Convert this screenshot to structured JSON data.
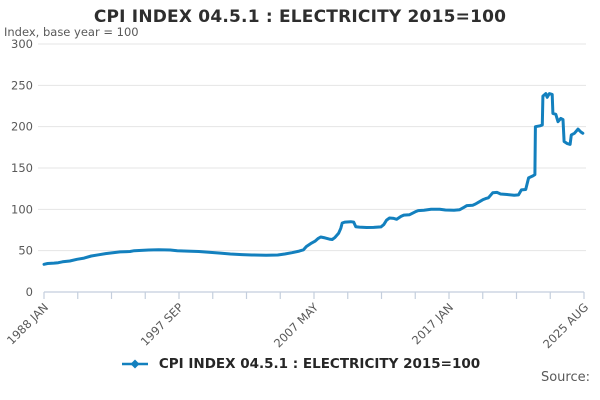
{
  "title": "CPI INDEX 04.5.1 : ELECTRICITY 2015=100",
  "subtitle": "Index, base year = 100",
  "source_label": "Source:",
  "legend": {
    "label": "CPI INDEX 04.5.1 : ELECTRICITY 2015=100"
  },
  "colors": {
    "line": "#1380be",
    "grid": "#e5e5e5",
    "axis": "#c4cedd",
    "tick_text": "#595959",
    "title_text": "#2e2e2e"
  },
  "chart_data": {
    "type": "line",
    "title": "CPI INDEX 04.5.1 : ELECTRICITY 2015=100",
    "ylabel": "Index, base year = 100",
    "xlabel": "",
    "ylim": [
      0,
      300
    ],
    "yticks": [
      0,
      50,
      100,
      150,
      200,
      250,
      300
    ],
    "x_range_years": [
      1988.0,
      2025.667
    ],
    "xtick_labels": [
      "1988 JAN",
      "1997 SEP",
      "2007 MAY",
      "2017 JAN",
      "2025 AUG"
    ],
    "minor_xtick_count": 17,
    "labeled_tick_indices": [
      0,
      4,
      8,
      12,
      16
    ],
    "grid": "horizontal",
    "legend_position": "bottom",
    "series": [
      {
        "name": "CPI INDEX 04.5.1 : ELECTRICITY 2015=100",
        "color": "#1380be",
        "points": [
          [
            1988.0,
            33.5
          ],
          [
            1988.25,
            34.5
          ],
          [
            1988.7,
            35
          ],
          [
            1989.0,
            35.5
          ],
          [
            1989.3,
            36.5
          ],
          [
            1989.8,
            37.5
          ],
          [
            1990.3,
            39.5
          ],
          [
            1990.8,
            41
          ],
          [
            1991.3,
            43.5
          ],
          [
            1991.8,
            45
          ],
          [
            1992.3,
            46.5
          ],
          [
            1992.8,
            47.5
          ],
          [
            1993.3,
            48.5
          ],
          [
            1994.0,
            49
          ],
          [
            1994.3,
            50
          ],
          [
            1995.3,
            50.8
          ],
          [
            1996.0,
            51
          ],
          [
            1996.8,
            50.8
          ],
          [
            1997.3,
            50
          ],
          [
            1998.0,
            49.5
          ],
          [
            1998.8,
            49
          ],
          [
            1999.5,
            48
          ],
          [
            2000.3,
            47
          ],
          [
            2001.0,
            46
          ],
          [
            2001.8,
            45.2
          ],
          [
            2002.5,
            44.8
          ],
          [
            2003.5,
            44.5
          ],
          [
            2004.3,
            44.8
          ],
          [
            2004.8,
            46
          ],
          [
            2005.3,
            47.5
          ],
          [
            2005.8,
            49.5
          ],
          [
            2006.1,
            51
          ],
          [
            2006.3,
            55
          ],
          [
            2006.6,
            58.5
          ],
          [
            2006.9,
            61.5
          ],
          [
            2007.1,
            64.5
          ],
          [
            2007.3,
            66.5
          ],
          [
            2007.6,
            65.5
          ],
          [
            2007.9,
            64
          ],
          [
            2008.1,
            63.5
          ],
          [
            2008.3,
            66
          ],
          [
            2008.55,
            71
          ],
          [
            2008.7,
            77
          ],
          [
            2008.8,
            83.5
          ],
          [
            2009.0,
            84.5
          ],
          [
            2009.4,
            85
          ],
          [
            2009.6,
            84.5
          ],
          [
            2009.75,
            79
          ],
          [
            2010.0,
            78.5
          ],
          [
            2010.5,
            78
          ],
          [
            2011.0,
            78.2
          ],
          [
            2011.5,
            78.8
          ],
          [
            2011.7,
            81.5
          ],
          [
            2011.9,
            87
          ],
          [
            2012.1,
            89.5
          ],
          [
            2012.4,
            89
          ],
          [
            2012.6,
            88
          ],
          [
            2012.9,
            91.5
          ],
          [
            2013.1,
            93
          ],
          [
            2013.5,
            93.5
          ],
          [
            2013.9,
            97
          ],
          [
            2014.1,
            98.5
          ],
          [
            2014.5,
            99
          ],
          [
            2015.0,
            100
          ],
          [
            2015.6,
            100
          ],
          [
            2016.0,
            99.2
          ],
          [
            2016.6,
            99
          ],
          [
            2017.0,
            99.5
          ],
          [
            2017.3,
            102.5
          ],
          [
            2017.5,
            104.5
          ],
          [
            2017.9,
            105
          ],
          [
            2018.1,
            106.5
          ],
          [
            2018.3,
            108.5
          ],
          [
            2018.6,
            111.5
          ],
          [
            2018.8,
            113
          ],
          [
            2019.0,
            114
          ],
          [
            2019.3,
            120
          ],
          [
            2019.6,
            120.5
          ],
          [
            2019.85,
            118.5
          ],
          [
            2020.3,
            118
          ],
          [
            2020.8,
            117
          ],
          [
            2021.1,
            117.5
          ],
          [
            2021.3,
            123.5
          ],
          [
            2021.6,
            124
          ],
          [
            2021.8,
            138
          ],
          [
            2022.1,
            140.5
          ],
          [
            2022.24,
            142
          ],
          [
            2022.28,
            200
          ],
          [
            2022.6,
            201
          ],
          [
            2022.76,
            202
          ],
          [
            2022.8,
            237
          ],
          [
            2023.0,
            240
          ],
          [
            2023.1,
            235.5
          ],
          [
            2023.25,
            240
          ],
          [
            2023.45,
            239
          ],
          [
            2023.5,
            216
          ],
          [
            2023.7,
            215
          ],
          [
            2023.85,
            206
          ],
          [
            2024.05,
            210
          ],
          [
            2024.2,
            208.5
          ],
          [
            2024.28,
            182
          ],
          [
            2024.5,
            179.5
          ],
          [
            2024.7,
            178.5
          ],
          [
            2024.78,
            190
          ],
          [
            2025.0,
            192
          ],
          [
            2025.25,
            197
          ],
          [
            2025.45,
            193.5
          ],
          [
            2025.58,
            192
          ]
        ]
      }
    ]
  }
}
